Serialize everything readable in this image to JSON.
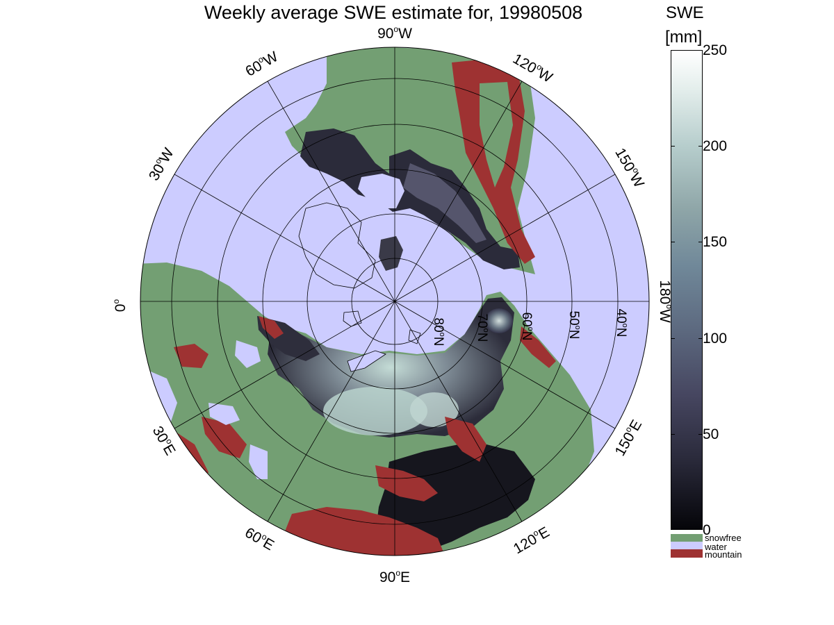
{
  "title": "Weekly average SWE estimate for, 19980508",
  "map": {
    "projection": "north polar stereographic",
    "longitude_labels": [
      {
        "id": "lon-90w",
        "main": "90",
        "sup": "o",
        "suffix": "W"
      },
      {
        "id": "lon-120w",
        "main": "120",
        "sup": "o",
        "suffix": "W"
      },
      {
        "id": "lon-150w",
        "main": "150",
        "sup": "o",
        "suffix": "W"
      },
      {
        "id": "lon-180w",
        "main": "180",
        "sup": "o",
        "suffix": "W"
      },
      {
        "id": "lon-150e",
        "main": "150",
        "sup": "o",
        "suffix": "E"
      },
      {
        "id": "lon-120e",
        "main": "120",
        "sup": "o",
        "suffix": "E"
      },
      {
        "id": "lon-90e",
        "main": "90",
        "sup": "o",
        "suffix": "E"
      },
      {
        "id": "lon-60e",
        "main": "60",
        "sup": "o",
        "suffix": "E"
      },
      {
        "id": "lon-30e",
        "main": "30",
        "sup": "o",
        "suffix": "E"
      },
      {
        "id": "lon-0",
        "main": "0",
        "sup": "o",
        "suffix": ""
      },
      {
        "id": "lon-30w",
        "main": "30",
        "sup": "o",
        "suffix": "W"
      },
      {
        "id": "lon-60w",
        "main": "60",
        "sup": "o",
        "suffix": "W"
      }
    ],
    "latitude_labels": [
      {
        "id": "lat-80n",
        "main": "80",
        "sup": "o",
        "suffix": "N"
      },
      {
        "id": "lat-70n",
        "main": "70",
        "sup": "o",
        "suffix": "N"
      },
      {
        "id": "lat-60n",
        "main": "60",
        "sup": "o",
        "suffix": "N"
      },
      {
        "id": "lat-50n",
        "main": "50",
        "sup": "o",
        "suffix": "N"
      },
      {
        "id": "lat-40n",
        "main": "40",
        "sup": "o",
        "suffix": "N"
      }
    ],
    "colors": {
      "snowfree": "#739f73",
      "water": "#ccccff",
      "mountain": "#9e3232"
    }
  },
  "colorbar": {
    "title_line1": "SWE",
    "title_line2": "[mm]",
    "ticks": [
      "0",
      "50",
      "100",
      "150",
      "200",
      "250"
    ],
    "range": [
      0,
      250
    ],
    "colormap": "bone"
  },
  "legend": [
    {
      "label": "snowfree",
      "color": "#739f73"
    },
    {
      "label": "water",
      "color": "#ccccff"
    },
    {
      "label": "mountain",
      "color": "#9e3232"
    }
  ]
}
